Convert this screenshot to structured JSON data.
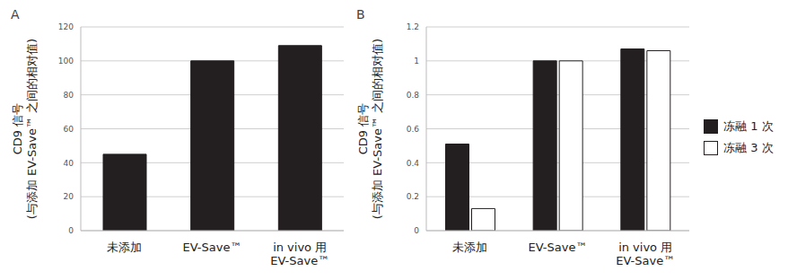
{
  "chart_data": [
    {
      "type": "bar",
      "title": "A",
      "y_label": "CD9 信号\n(与添加 EV-Save™ 之间的相对值)",
      "categories": [
        "未添加",
        "EV-Save™",
        "in vivo 用\nEV-Save™"
      ],
      "values": [
        45,
        100,
        109
      ],
      "color": "#231f20",
      "ylim": [
        0,
        120
      ],
      "yticks": [
        0,
        20,
        40,
        60,
        80,
        100,
        120
      ],
      "grid": true
    },
    {
      "type": "bar",
      "title": "B",
      "y_label": "CD9 信号\n(与添加 EV-Save™ 之间的相对值)",
      "categories": [
        "未添加",
        "EV-Save™",
        "in vivo 用\nEV-Save™"
      ],
      "series": [
        {
          "name": "冻融 1 次",
          "color": "#231f20",
          "values": [
            0.51,
            1.0,
            1.07
          ]
        },
        {
          "name": "冻融 3 次",
          "color": "#ffffff",
          "values": [
            0.13,
            1.0,
            1.06
          ]
        }
      ],
      "ylim": [
        0,
        1.2
      ],
      "yticks": [
        0,
        0.2,
        0.4,
        0.6,
        0.8,
        1,
        1.2
      ],
      "grid": true,
      "legend": "right"
    }
  ]
}
